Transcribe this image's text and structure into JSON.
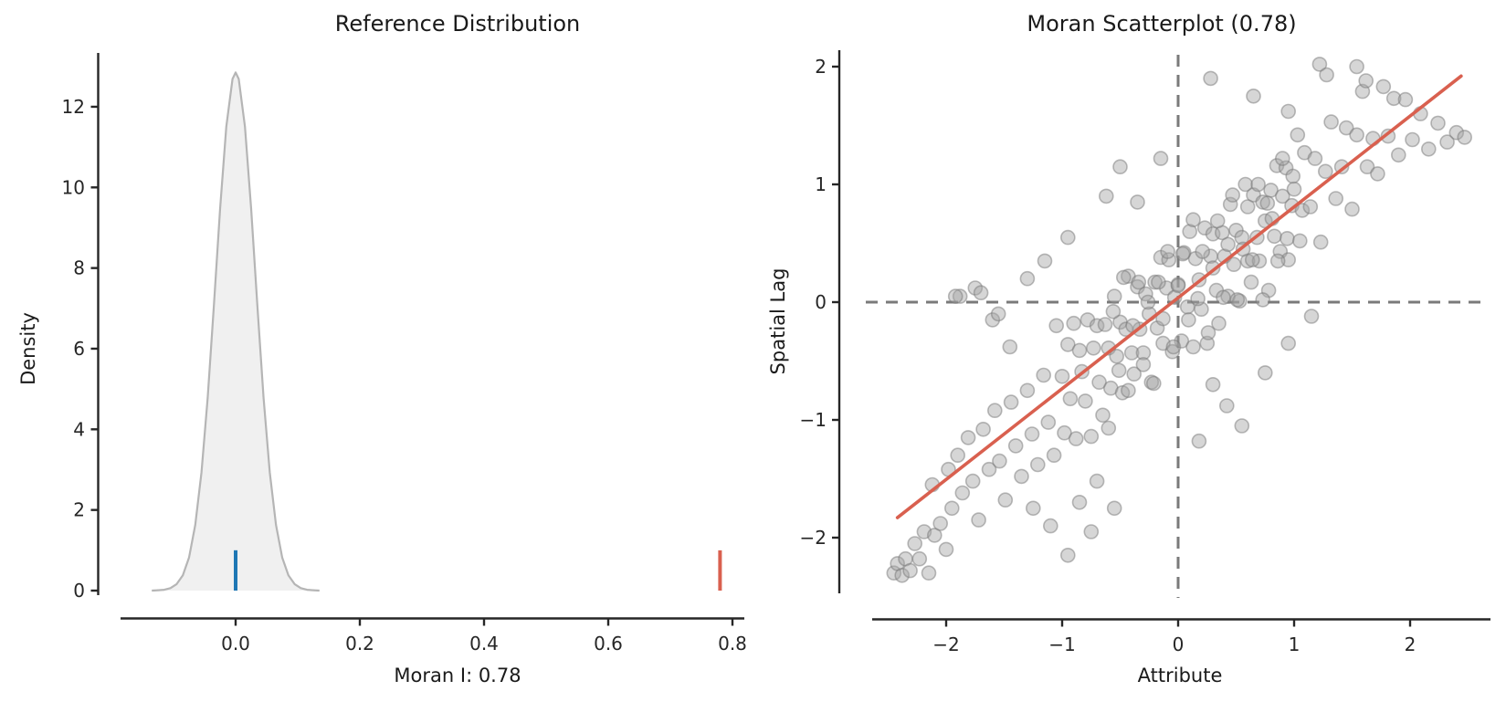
{
  "figure": {
    "background": "#ffffff",
    "text_color": "#1a1a1a"
  },
  "chart_data": [
    {
      "type": "area",
      "title": "Reference Distribution",
      "xlabel": "Moran I: 0.78",
      "ylabel": "Density",
      "xlim": [
        -0.19,
        0.82
      ],
      "ylim": [
        0,
        13.6
      ],
      "xticks": [
        0.0,
        0.2,
        0.4,
        0.6,
        0.8
      ],
      "xtick_labels": [
        "0.0",
        "0.2",
        "0.4",
        "0.6",
        "0.8"
      ],
      "yticks": [
        0,
        2,
        4,
        6,
        8,
        10,
        12
      ],
      "ytick_labels": [
        "0",
        "2",
        "4",
        "6",
        "8",
        "10",
        "12"
      ],
      "grid": false,
      "kde_curve": {
        "fill": "#ebebeb",
        "stroke": "#b5b5b5",
        "x": [
          -0.135,
          -0.125,
          -0.115,
          -0.105,
          -0.095,
          -0.085,
          -0.075,
          -0.065,
          -0.055,
          -0.045,
          -0.035,
          -0.025,
          -0.015,
          -0.005,
          0.0,
          0.005,
          0.015,
          0.025,
          0.035,
          0.045,
          0.055,
          0.065,
          0.075,
          0.085,
          0.095,
          0.105,
          0.115,
          0.125,
          0.135
        ],
        "y": [
          0.0,
          0.01,
          0.02,
          0.06,
          0.16,
          0.38,
          0.82,
          1.63,
          2.93,
          4.78,
          7.07,
          9.47,
          11.51,
          12.69,
          12.85,
          12.69,
          11.51,
          9.47,
          7.07,
          4.78,
          2.93,
          1.63,
          0.82,
          0.38,
          0.16,
          0.06,
          0.02,
          0.01,
          0.0
        ]
      },
      "expected_i_marker": {
        "x": 0.0,
        "y0": 0,
        "y1": 1.0,
        "color": "#1f77b4"
      },
      "observed_i_marker": {
        "x": 0.78,
        "y0": 0,
        "y1": 1.0,
        "color": "#d9604f"
      }
    },
    {
      "type": "scatter",
      "title": "Moran Scatterplot (0.78)",
      "xlabel": "Attribute",
      "ylabel": "Spatial Lag",
      "moran_i": 0.78,
      "xlim": [
        -2.65,
        2.7
      ],
      "ylim": [
        -2.55,
        2.15
      ],
      "xticks": [
        -2,
        -1,
        0,
        1,
        2
      ],
      "xtick_labels": [
        "−2",
        "−1",
        "0",
        "1",
        "2"
      ],
      "yticks": [
        -2,
        -1,
        0,
        1,
        2
      ],
      "ytick_labels": [
        "−2",
        "−1",
        "0",
        "1",
        "2"
      ],
      "grid": false,
      "mean_lines": {
        "x": 0,
        "y": 0,
        "color": "#7a7a7a",
        "style": "dashed"
      },
      "fit_line": {
        "x0": -2.42,
        "y0": -1.83,
        "x1": 2.44,
        "y1": 1.92,
        "color": "#d9604f"
      },
      "point_style": {
        "fill": "#a5a5a5",
        "fill_opacity": 0.45,
        "stroke": "#787878",
        "stroke_opacity": 0.5,
        "radius": 7.5
      },
      "points": [
        [
          -2.45,
          -2.3
        ],
        [
          -2.42,
          -2.22
        ],
        [
          -2.38,
          -2.32
        ],
        [
          -2.35,
          -2.18
        ],
        [
          -2.31,
          -2.28
        ],
        [
          -2.27,
          -2.05
        ],
        [
          -2.23,
          -2.18
        ],
        [
          -2.19,
          -1.95
        ],
        [
          -2.15,
          -2.3
        ],
        [
          -2.1,
          -1.98
        ],
        [
          -2.05,
          -1.88
        ],
        [
          -2.0,
          -2.1
        ],
        [
          -2.12,
          -1.55
        ],
        [
          -1.98,
          -1.42
        ],
        [
          -1.95,
          -1.75
        ],
        [
          -1.9,
          -1.3
        ],
        [
          -1.86,
          -1.62
        ],
        [
          -1.81,
          -1.15
        ],
        [
          -1.77,
          -1.52
        ],
        [
          -1.72,
          -1.85
        ],
        [
          -1.68,
          -1.08
        ],
        [
          -1.63,
          -1.42
        ],
        [
          -1.58,
          -0.92
        ],
        [
          -1.54,
          -1.35
        ],
        [
          -1.49,
          -1.68
        ],
        [
          -1.44,
          -0.85
        ],
        [
          -1.4,
          -1.22
        ],
        [
          -1.35,
          -1.48
        ],
        [
          -1.3,
          -0.75
        ],
        [
          -1.26,
          -1.12
        ],
        [
          -1.21,
          -1.38
        ],
        [
          -1.16,
          -0.62
        ],
        [
          -1.12,
          -1.02
        ],
        [
          -1.07,
          -1.3
        ],
        [
          -1.88,
          0.05
        ],
        [
          -1.75,
          0.12
        ],
        [
          -1.6,
          -0.15
        ],
        [
          -1.45,
          -0.38
        ],
        [
          -1.05,
          -0.2
        ],
        [
          -1.0,
          -0.63
        ],
        [
          -0.98,
          -1.11
        ],
        [
          -0.95,
          -0.36
        ],
        [
          -0.93,
          -0.82
        ],
        [
          -0.9,
          -0.18
        ],
        [
          -0.88,
          -1.16
        ],
        [
          -0.85,
          -0.41
        ],
        [
          -0.83,
          -0.59
        ],
        [
          -0.8,
          -0.84
        ],
        [
          -0.78,
          -0.15
        ],
        [
          -0.75,
          -1.14
        ],
        [
          -0.73,
          -0.39
        ],
        [
          -0.7,
          -0.2
        ],
        [
          -0.68,
          -0.68
        ],
        [
          -0.65,
          -0.96
        ],
        [
          -0.63,
          -0.19
        ],
        [
          -0.6,
          -0.39
        ],
        [
          -0.58,
          -0.73
        ],
        [
          -0.55,
          0.05
        ],
        [
          -0.53,
          -0.46
        ],
        [
          -0.5,
          -0.17
        ],
        [
          -0.48,
          -0.77
        ],
        [
          -0.45,
          -0.23
        ],
        [
          -0.43,
          0.22
        ],
        [
          -0.4,
          -0.43
        ],
        [
          -0.38,
          -0.61
        ],
        [
          -0.35,
          0.13
        ],
        [
          -0.33,
          -0.23
        ],
        [
          -0.3,
          -0.43
        ],
        [
          -0.28,
          0.07
        ],
        [
          -0.25,
          -0.1
        ],
        [
          -0.23,
          -0.68
        ],
        [
          -0.2,
          0.17
        ],
        [
          -0.18,
          -0.22
        ],
        [
          -0.15,
          0.38
        ],
        [
          -0.13,
          -0.35
        ],
        [
          -0.1,
          0.12
        ],
        [
          -0.08,
          0.36
        ],
        [
          -0.05,
          -0.42
        ],
        [
          -0.03,
          0.04
        ],
        [
          0.0,
          0.15
        ],
        [
          0.03,
          -0.33
        ],
        [
          0.05,
          0.42
        ],
        [
          0.08,
          -0.04
        ],
        [
          0.1,
          0.6
        ],
        [
          0.13,
          -0.38
        ],
        [
          0.15,
          0.37
        ],
        [
          0.18,
          0.19
        ],
        [
          0.2,
          -0.06
        ],
        [
          0.23,
          0.63
        ],
        [
          0.25,
          -0.35
        ],
        [
          0.28,
          0.39
        ],
        [
          0.3,
          0.58
        ],
        [
          0.33,
          0.1
        ],
        [
          0.35,
          -0.18
        ],
        [
          0.38,
          0.59
        ],
        [
          0.4,
          0.39
        ],
        [
          0.43,
          0.05
        ],
        [
          0.45,
          0.83
        ],
        [
          0.48,
          0.32
        ],
        [
          0.5,
          0.61
        ],
        [
          0.53,
          0.01
        ],
        [
          0.55,
          0.55
        ],
        [
          0.58,
          1.0
        ],
        [
          0.6,
          0.35
        ],
        [
          0.63,
          0.17
        ],
        [
          0.65,
          0.91
        ],
        [
          0.68,
          0.55
        ],
        [
          0.7,
          0.35
        ],
        [
          0.73,
          0.85
        ],
        [
          0.75,
          0.69
        ],
        [
          0.78,
          0.1
        ],
        [
          0.8,
          0.95
        ],
        [
          0.83,
          0.56
        ],
        [
          0.85,
          1.16
        ],
        [
          0.88,
          0.43
        ],
        [
          0.9,
          0.9
        ],
        [
          0.93,
          1.14
        ],
        [
          0.95,
          0.36
        ],
        [
          0.98,
          0.82
        ],
        [
          -0.6,
          -1.07
        ],
        [
          -0.56,
          -0.08
        ],
        [
          -0.51,
          -0.58
        ],
        [
          -0.47,
          0.21
        ],
        [
          -0.43,
          -0.75
        ],
        [
          -0.39,
          -0.2
        ],
        [
          -0.34,
          0.17
        ],
        [
          -0.3,
          -0.53
        ],
        [
          -0.26,
          0.0
        ],
        [
          -0.21,
          -0.69
        ],
        [
          -0.17,
          0.17
        ],
        [
          -0.13,
          -0.14
        ],
        [
          -0.09,
          0.43
        ],
        [
          -0.04,
          -0.38
        ],
        [
          0.0,
          0.14
        ],
        [
          0.04,
          0.41
        ],
        [
          0.09,
          -0.15
        ],
        [
          0.13,
          0.7
        ],
        [
          0.17,
          0.03
        ],
        [
          0.21,
          0.43
        ],
        [
          0.26,
          -0.26
        ],
        [
          0.3,
          0.29
        ],
        [
          0.34,
          0.69
        ],
        [
          0.39,
          0.04
        ],
        [
          0.43,
          0.49
        ],
        [
          0.47,
          0.91
        ],
        [
          0.51,
          0.02
        ],
        [
          0.56,
          0.45
        ],
        [
          0.6,
          0.81
        ],
        [
          0.64,
          0.36
        ],
        [
          0.69,
          1.0
        ],
        [
          0.73,
          0.02
        ],
        [
          0.77,
          0.84
        ],
        [
          0.81,
          0.71
        ],
        [
          0.86,
          0.35
        ],
        [
          0.9,
          1.22
        ],
        [
          0.94,
          0.54
        ],
        [
          0.99,
          1.07
        ],
        [
          1.03,
          1.42
        ],
        [
          1.07,
          0.78
        ],
        [
          1.0,
          0.96
        ],
        [
          1.05,
          0.52
        ],
        [
          1.09,
          1.27
        ],
        [
          1.14,
          0.81
        ],
        [
          1.18,
          1.22
        ],
        [
          1.23,
          0.51
        ],
        [
          1.27,
          1.11
        ],
        [
          1.32,
          1.53
        ],
        [
          1.36,
          0.88
        ],
        [
          1.41,
          1.15
        ],
        [
          1.45,
          1.48
        ],
        [
          1.5,
          0.79
        ],
        [
          1.54,
          1.42
        ],
        [
          1.59,
          1.79
        ],
        [
          1.63,
          1.15
        ],
        [
          1.68,
          1.39
        ],
        [
          1.72,
          1.09
        ],
        [
          1.77,
          1.83
        ],
        [
          1.81,
          1.41
        ],
        [
          1.86,
          1.73
        ],
        [
          1.9,
          1.25
        ],
        [
          1.96,
          1.72
        ],
        [
          2.02,
          1.38
        ],
        [
          2.09,
          1.6
        ],
        [
          2.16,
          1.3
        ],
        [
          2.24,
          1.52
        ],
        [
          2.32,
          1.36
        ],
        [
          2.4,
          1.44
        ],
        [
          2.47,
          1.4
        ],
        [
          1.54,
          2.0
        ],
        [
          1.62,
          1.88
        ],
        [
          1.22,
          2.02
        ],
        [
          1.28,
          1.93
        ],
        [
          0.28,
          1.9
        ],
        [
          0.65,
          1.75
        ],
        [
          0.95,
          1.62
        ],
        [
          -0.5,
          1.15
        ],
        [
          -0.62,
          0.9
        ],
        [
          -0.15,
          1.22
        ],
        [
          -0.35,
          0.85
        ],
        [
          -1.15,
          0.35
        ],
        [
          -1.3,
          0.2
        ],
        [
          -0.95,
          0.55
        ],
        [
          -1.55,
          -0.1
        ],
        [
          -1.7,
          0.08
        ],
        [
          -1.92,
          0.05
        ],
        [
          0.55,
          -1.05
        ],
        [
          0.42,
          -0.88
        ],
        [
          0.18,
          -1.18
        ],
        [
          0.75,
          -0.6
        ],
        [
          0.95,
          -0.35
        ],
        [
          1.15,
          -0.12
        ],
        [
          0.3,
          -0.7
        ],
        [
          -0.55,
          -1.75
        ],
        [
          -0.75,
          -1.95
        ],
        [
          -0.95,
          -2.15
        ],
        [
          -1.1,
          -1.9
        ],
        [
          -0.85,
          -1.7
        ],
        [
          -1.25,
          -1.75
        ],
        [
          -0.7,
          -1.52
        ]
      ]
    }
  ]
}
